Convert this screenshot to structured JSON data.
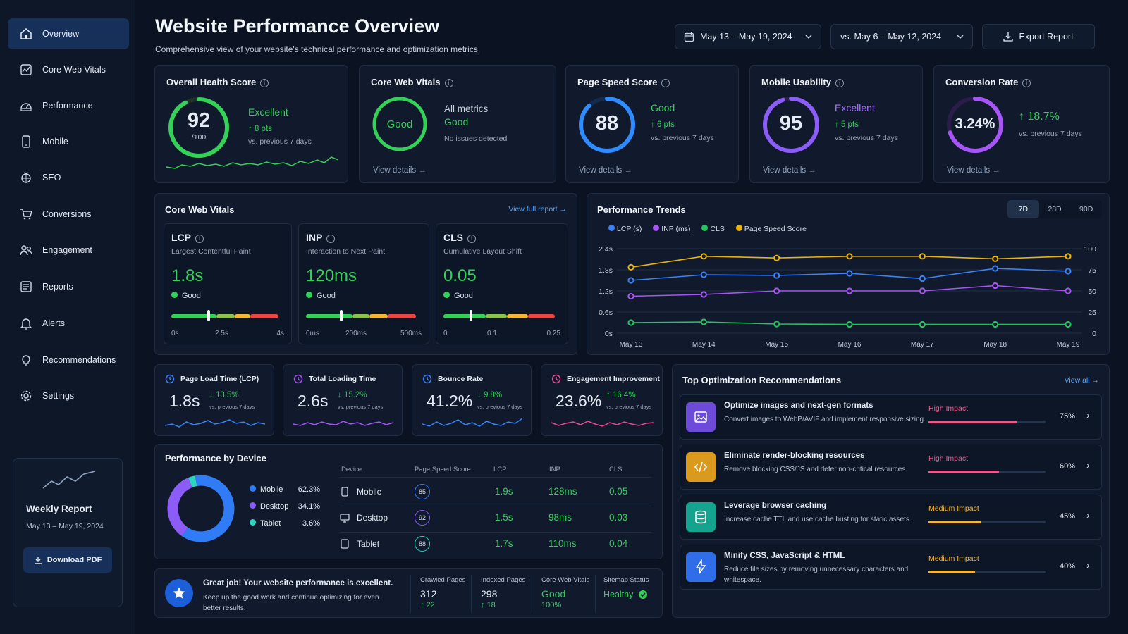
{
  "sidebar": {
    "items": [
      {
        "label": "Overview",
        "icon": "home-icon",
        "active": true
      },
      {
        "label": "Core Web Vitals",
        "icon": "chart-icon"
      },
      {
        "label": "Performance",
        "icon": "gauge-icon"
      },
      {
        "label": "Mobile",
        "icon": "mobile-icon"
      },
      {
        "label": "SEO",
        "icon": "seo-icon"
      },
      {
        "label": "Conversions",
        "icon": "cart-icon"
      },
      {
        "label": "Engagement",
        "icon": "users-icon"
      },
      {
        "label": "Reports",
        "icon": "report-icon"
      },
      {
        "label": "Alerts",
        "icon": "bell-icon"
      },
      {
        "label": "Recommendations",
        "icon": "bulb-icon"
      },
      {
        "label": "Settings",
        "icon": "gear-icon"
      }
    ],
    "weekly": {
      "title": "Weekly Report",
      "range": "May 13 – May 19, 2024",
      "button": "Download PDF"
    }
  },
  "header": {
    "title": "Website Performance Overview",
    "subtitle": "Comprehensive view of your website's technical performance and optimization metrics.",
    "date_range": "May 13 – May 19, 2024",
    "compare_range": "vs. May 6 – May 12, 2024",
    "export": "Export Report"
  },
  "kpis": {
    "health": {
      "title": "Overall Health Score",
      "value": "92",
      "of": "/100",
      "score": 0.92,
      "status": "Excellent",
      "delta": "8 pts",
      "compare": "vs. previous 7 days"
    },
    "cwv": {
      "title": "Core Web Vitals",
      "ring": "Good",
      "label": "All metrics",
      "status": "Good",
      "note": "No issues detected",
      "link": "View details"
    },
    "speed": {
      "title": "Page Speed Score",
      "value": "88",
      "score": 0.88,
      "status": "Good",
      "delta": "6 pts",
      "compare": "vs. previous 7 days",
      "link": "View details"
    },
    "mobile": {
      "title": "Mobile Usability",
      "value": "95",
      "score": 0.95,
      "status": "Excellent",
      "delta": "5 pts",
      "compare": "vs. previous 7 days",
      "link": "View details"
    },
    "conversion": {
      "title": "Conversion Rate",
      "value": "3.24%",
      "score": 0.7,
      "delta": "18.7%",
      "compare": "vs. previous 7 days",
      "link": "View details"
    }
  },
  "vitals": {
    "title": "Core Web Vitals",
    "link": "View full report",
    "items": [
      {
        "name": "LCP",
        "desc": "Largest Contentful Paint",
        "value": "1.8s",
        "status": "Good",
        "ticks": [
          "0s",
          "2.5s",
          "4s"
        ],
        "position": 0.33
      },
      {
        "name": "INP",
        "desc": "Interaction to Next Paint",
        "value": "120ms",
        "status": "Good",
        "ticks": [
          "0ms",
          "200ms",
          "500ms"
        ],
        "position": 0.3
      },
      {
        "name": "CLS",
        "desc": "Cumulative Layout Shift",
        "value": "0.05",
        "status": "Good",
        "ticks": [
          "0",
          "0.1",
          "0.25"
        ],
        "position": 0.23
      }
    ]
  },
  "trends": {
    "title": "Performance Trends",
    "tabs": [
      "7D",
      "28D",
      "90D"
    ],
    "active_tab": "7D"
  },
  "chart_data": {
    "type": "line",
    "title": "Performance Trends",
    "x": [
      "May 13",
      "May 14",
      "May 15",
      "May 16",
      "May 17",
      "May 18",
      "May 19"
    ],
    "y_left_ticks": [
      "2.4s",
      "1.8s",
      "1.2s",
      "0.6s",
      "0s"
    ],
    "y_right_ticks": [
      "100",
      "75",
      "50",
      "25",
      "0"
    ],
    "ylim_left": [
      0,
      2.4
    ],
    "ylim_right": [
      0,
      100
    ],
    "legend": "top-left",
    "grid": true,
    "series": [
      {
        "name": "LCP (s)",
        "color": "#3b82f6",
        "axis": "left",
        "values": [
          1.5,
          1.66,
          1.64,
          1.7,
          1.55,
          1.84,
          1.76
        ]
      },
      {
        "name": "INP (ms)",
        "color": "#a855f7",
        "axis": "left",
        "values": [
          1.05,
          1.1,
          1.2,
          1.2,
          1.2,
          1.35,
          1.2
        ]
      },
      {
        "name": "CLS",
        "color": "#22c55e",
        "axis": "left",
        "values": [
          0.3,
          0.32,
          0.26,
          0.25,
          0.25,
          0.25,
          0.25
        ]
      },
      {
        "name": "Page Speed Score",
        "color": "#eab308",
        "axis": "right",
        "values": [
          78,
          91,
          89,
          91,
          91,
          88,
          91
        ]
      }
    ]
  },
  "minis": [
    {
      "title": "Page Load Time (LCP)",
      "value": "1.8s",
      "delta": "13.5%",
      "compare": "vs. previous 7 days",
      "dir": "down",
      "color": "#3b82f6",
      "icon": "clock-icon"
    },
    {
      "title": "Total Loading Time",
      "value": "2.6s",
      "delta": "15.2%",
      "compare": "vs. previous 7 days",
      "dir": "down",
      "color": "#a855f7",
      "icon": "hourglass-icon"
    },
    {
      "title": "Bounce Rate",
      "value": "41.2%",
      "delta": "9.8%",
      "compare": "vs. previous 7 days",
      "dir": "down",
      "color": "#3b82f6",
      "icon": "trend-icon"
    },
    {
      "title": "Engagement Improvement",
      "value": "23.6%",
      "delta": "16.4%",
      "compare": "vs. previous 7 days",
      "dir": "up",
      "color": "#ec4899",
      "icon": "people-icon"
    }
  ],
  "device": {
    "title": "Performance by Device",
    "legend": [
      {
        "name": "Mobile",
        "pct": "62.3%",
        "value": 62.3,
        "color": "#2f7cf6"
      },
      {
        "name": "Desktop",
        "pct": "34.1%",
        "value": 34.1,
        "color": "#8b5cf6"
      },
      {
        "name": "Tablet",
        "pct": "3.6%",
        "value": 3.6,
        "color": "#2dd4bf"
      }
    ],
    "headers": [
      "Device",
      "Page Speed Score",
      "LCP",
      "INP",
      "CLS"
    ],
    "rows": [
      {
        "device": "Mobile",
        "score": "85",
        "lcp": "1.9s",
        "inp": "128ms",
        "cls": "0.05",
        "color": "#3b82f6"
      },
      {
        "device": "Desktop",
        "score": "92",
        "lcp": "1.5s",
        "inp": "98ms",
        "cls": "0.03",
        "color": "#8b5cf6"
      },
      {
        "device": "Tablet",
        "score": "88",
        "lcp": "1.7s",
        "inp": "110ms",
        "cls": "0.04",
        "color": "#2dd4bf"
      }
    ]
  },
  "summary": {
    "title": "Great job! Your website performance is excellent.",
    "text": "Keep up the good work and continue optimizing for even better results.",
    "stats": [
      {
        "label": "Crawled Pages",
        "value": "312",
        "delta": "22"
      },
      {
        "label": "Indexed Pages",
        "value": "298",
        "delta": "18"
      },
      {
        "label": "Core Web Vitals",
        "value": "Good",
        "delta": "100%"
      },
      {
        "label": "Sitemap Status",
        "value": "Healthy"
      }
    ]
  },
  "recs": {
    "title": "Top Optimization Recommendations",
    "link": "View all",
    "items": [
      {
        "title": "Optimize images and next-gen formats",
        "desc1": "Convert images to WebP/AVIF and implement",
        "desc2": "responsive sizing.",
        "impact": "High Impact",
        "pct": "75%",
        "value": 75,
        "color": "#f0578a",
        "icon_bg": "#6d4bd8",
        "icon": "image-icon"
      },
      {
        "title": "Eliminate render-blocking resources",
        "desc1": "Remove blocking CSS/JS and defer non-critical",
        "desc2": "resources.",
        "impact": "High Impact",
        "pct": "60%",
        "value": 60,
        "color": "#f0578a",
        "icon_bg": "#d99a1e",
        "icon": "code-icon"
      },
      {
        "title": "Leverage browser caching",
        "desc1": "Increase cache TTL and use cache busting",
        "desc2": "for static assets.",
        "impact": "Medium Impact",
        "pct": "45%",
        "value": 45,
        "color": "#f5b731",
        "icon_bg": "#14a38f",
        "icon": "database-icon"
      },
      {
        "title": "Minify CSS, JavaScript & HTML",
        "desc1": "Reduce file sizes by removing unnecessary",
        "desc2": "characters and whitespace.",
        "impact": "Medium Impact",
        "pct": "40%",
        "value": 40,
        "color": "#f5b731",
        "icon_bg": "#2f6ee8",
        "icon": "bolt-icon"
      }
    ]
  }
}
